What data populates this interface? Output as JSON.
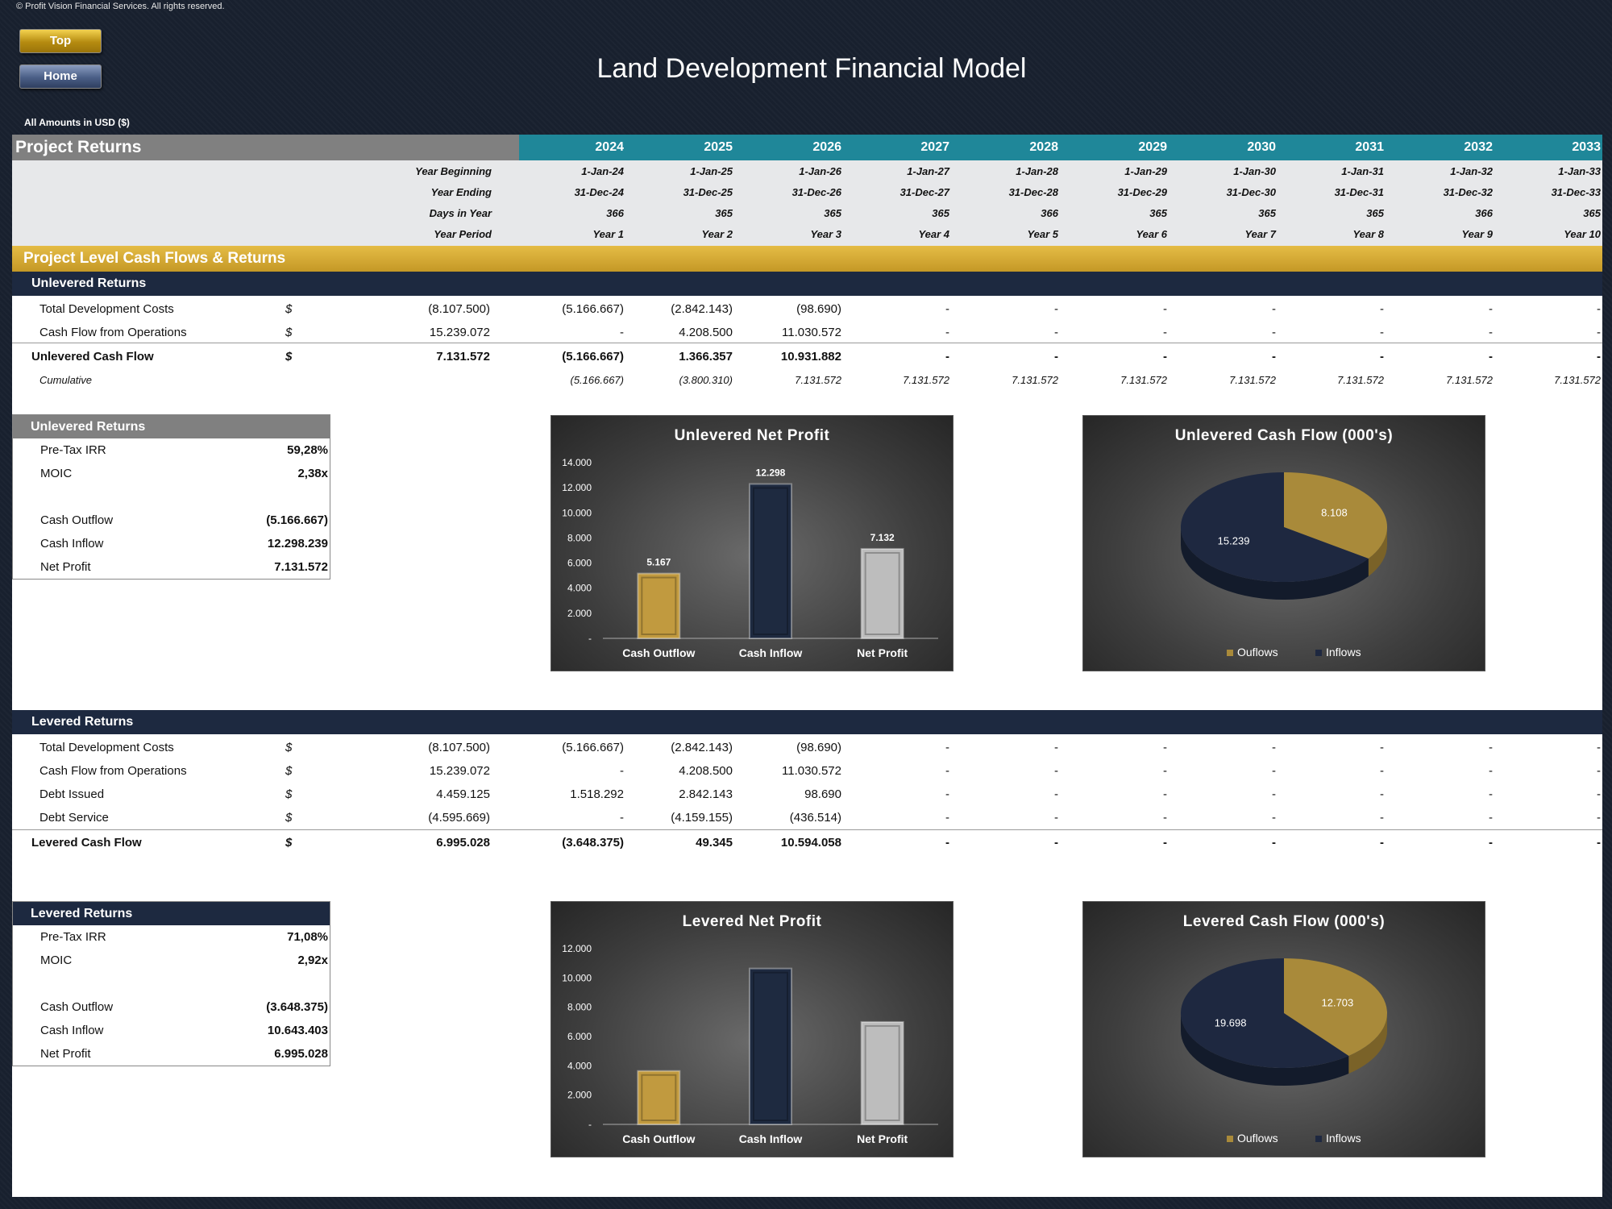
{
  "copyright": "© Profit Vision Financial Services. All rights reserved.",
  "nav": {
    "top_label": "Top",
    "home_label": "Home"
  },
  "title": "Land Development Financial Model",
  "amounts_note": "All Amounts in  USD ($)",
  "colors": {
    "teal": "#1f8799",
    "gold": "#c9a233",
    "navy": "#1d2940",
    "grey": "#808080",
    "bar_gold": "#c19a3f",
    "bar_navy": "#1e2a40",
    "bar_silver": "#bdbdbd"
  },
  "section_title": "Project Returns",
  "years": [
    "2024",
    "2025",
    "2026",
    "2027",
    "2028",
    "2029",
    "2030",
    "2031",
    "2032",
    "2033"
  ],
  "date_rows": [
    {
      "label": "Year Beginning",
      "values": [
        "1-Jan-24",
        "1-Jan-25",
        "1-Jan-26",
        "1-Jan-27",
        "1-Jan-28",
        "1-Jan-29",
        "1-Jan-30",
        "1-Jan-31",
        "1-Jan-32",
        "1-Jan-33"
      ]
    },
    {
      "label": "Year Ending",
      "values": [
        "31-Dec-24",
        "31-Dec-25",
        "31-Dec-26",
        "31-Dec-27",
        "31-Dec-28",
        "31-Dec-29",
        "31-Dec-30",
        "31-Dec-31",
        "31-Dec-32",
        "31-Dec-33"
      ]
    },
    {
      "label": "Days in Year",
      "values": [
        "366",
        "365",
        "365",
        "365",
        "366",
        "365",
        "365",
        "365",
        "366",
        "365"
      ]
    },
    {
      "label": "Year Period",
      "values": [
        "Year 1",
        "Year 2",
        "Year 3",
        "Year 4",
        "Year 5",
        "Year 6",
        "Year 7",
        "Year 8",
        "Year 9",
        "Year 10"
      ]
    }
  ],
  "band_title": "Project Level Cash Flows & Returns",
  "unlevered": {
    "title": "Unlevered Returns",
    "rows": [
      {
        "label": "Total Development Costs",
        "unit": "$",
        "total": "(8.107.500)",
        "values": [
          "(5.166.667)",
          "(2.842.143)",
          "(98.690)",
          "-",
          "-",
          "-",
          "-",
          "-",
          "-",
          "-"
        ]
      },
      {
        "label": "Cash Flow from Operations",
        "unit": "$",
        "total": "15.239.072",
        "values": [
          "-",
          "4.208.500",
          "11.030.572",
          "-",
          "-",
          "-",
          "-",
          "-",
          "-",
          "-"
        ]
      }
    ],
    "total": {
      "label": "Unlevered Cash Flow",
      "unit": "$",
      "total": "7.131.572",
      "values": [
        "(5.166.667)",
        "1.366.357",
        "10.931.882",
        "-",
        "-",
        "-",
        "-",
        "-",
        "-",
        "-"
      ]
    },
    "cumulative": {
      "label": "Cumulative",
      "values": [
        "(5.166.667)",
        "(3.800.310)",
        "7.131.572",
        "7.131.572",
        "7.131.572",
        "7.131.572",
        "7.131.572",
        "7.131.572",
        "7.131.572",
        "7.131.572"
      ]
    },
    "summary": {
      "title": "Unlevered Returns",
      "items": [
        {
          "label": "Pre-Tax IRR",
          "value": "59,28%"
        },
        {
          "label": "MOIC",
          "value": "2,38x"
        },
        {
          "label": "",
          "value": ""
        },
        {
          "label": "Cash Outflow",
          "value": "(5.166.667)"
        },
        {
          "label": "Cash Inflow",
          "value": "12.298.239"
        },
        {
          "label": "Net Profit",
          "value": "7.131.572"
        }
      ]
    }
  },
  "levered": {
    "title": "Levered Returns",
    "rows": [
      {
        "label": "Total Development Costs",
        "unit": "$",
        "total": "(8.107.500)",
        "values": [
          "(5.166.667)",
          "(2.842.143)",
          "(98.690)",
          "-",
          "-",
          "-",
          "-",
          "-",
          "-",
          "-"
        ]
      },
      {
        "label": "Cash Flow from Operations",
        "unit": "$",
        "total": "15.239.072",
        "values": [
          "-",
          "4.208.500",
          "11.030.572",
          "-",
          "-",
          "-",
          "-",
          "-",
          "-",
          "-"
        ]
      },
      {
        "label": "Debt Issued",
        "unit": "$",
        "total": "4.459.125",
        "values": [
          "1.518.292",
          "2.842.143",
          "98.690",
          "-",
          "-",
          "-",
          "-",
          "-",
          "-",
          "-"
        ]
      },
      {
        "label": "Debt Service",
        "unit": "$",
        "total": "(4.595.669)",
        "values": [
          "-",
          "(4.159.155)",
          "(436.514)",
          "-",
          "-",
          "-",
          "-",
          "-",
          "-",
          "-"
        ]
      }
    ],
    "total": {
      "label": "Levered Cash Flow",
      "unit": "$",
      "total": "6.995.028",
      "values": [
        "(3.648.375)",
        "49.345",
        "10.594.058",
        "-",
        "-",
        "-",
        "-",
        "-",
        "-",
        "-"
      ]
    },
    "summary": {
      "title": "Levered Returns",
      "items": [
        {
          "label": "Pre-Tax IRR",
          "value": "71,08%"
        },
        {
          "label": "MOIC",
          "value": "2,92x"
        },
        {
          "label": "",
          "value": ""
        },
        {
          "label": "Cash Outflow",
          "value": "(3.648.375)"
        },
        {
          "label": "Cash Inflow",
          "value": "10.643.403"
        },
        {
          "label": "Net Profit",
          "value": "6.995.028"
        }
      ]
    }
  },
  "chart_data": [
    {
      "type": "bar",
      "title": "Unlevered Net Profit",
      "categories": [
        "Cash Outflow",
        "Cash Inflow",
        "Net Profit"
      ],
      "values": [
        5167,
        12298,
        7132
      ],
      "data_labels": [
        "5.167",
        "12.298",
        "7.132"
      ],
      "ylim": [
        0,
        14000
      ],
      "ticks": [
        0,
        2000,
        4000,
        6000,
        8000,
        10000,
        12000,
        14000
      ],
      "tick_labels": [
        "-",
        "2.000",
        "4.000",
        "6.000",
        "8.000",
        "10.000",
        "12.000",
        "14.000"
      ],
      "colors": [
        "#c19a3f",
        "#1e2a40",
        "#bdbdbd"
      ]
    },
    {
      "type": "pie",
      "title": "Unlevered Cash Flow (000's)",
      "labels": [
        "Ouflows",
        "Inflows"
      ],
      "values": [
        8108,
        15239
      ],
      "data_labels": [
        "8.108",
        "15.239"
      ],
      "colors": [
        "#a98a3a",
        "#1e2840"
      ],
      "legend": "bottom"
    },
    {
      "type": "bar",
      "title": "Levered Net Profit",
      "categories": [
        "Cash Outflow",
        "Cash Inflow",
        "Net Profit"
      ],
      "values": [
        3648,
        10643,
        6995
      ],
      "data_labels": [],
      "ylim": [
        0,
        12000
      ],
      "ticks": [
        0,
        2000,
        4000,
        6000,
        8000,
        10000,
        12000
      ],
      "tick_labels": [
        "-",
        "2.000",
        "4.000",
        "6.000",
        "8.000",
        "10.000",
        "12.000"
      ],
      "colors": [
        "#c19a3f",
        "#1e2a40",
        "#bdbdbd"
      ]
    },
    {
      "type": "pie",
      "title": "Levered Cash Flow (000's)",
      "labels": [
        "Ouflows",
        "Inflows"
      ],
      "values": [
        12703,
        19698
      ],
      "data_labels": [
        "12.703",
        "19.698"
      ],
      "colors": [
        "#a98a3a",
        "#1e2840"
      ],
      "legend": "bottom"
    }
  ]
}
